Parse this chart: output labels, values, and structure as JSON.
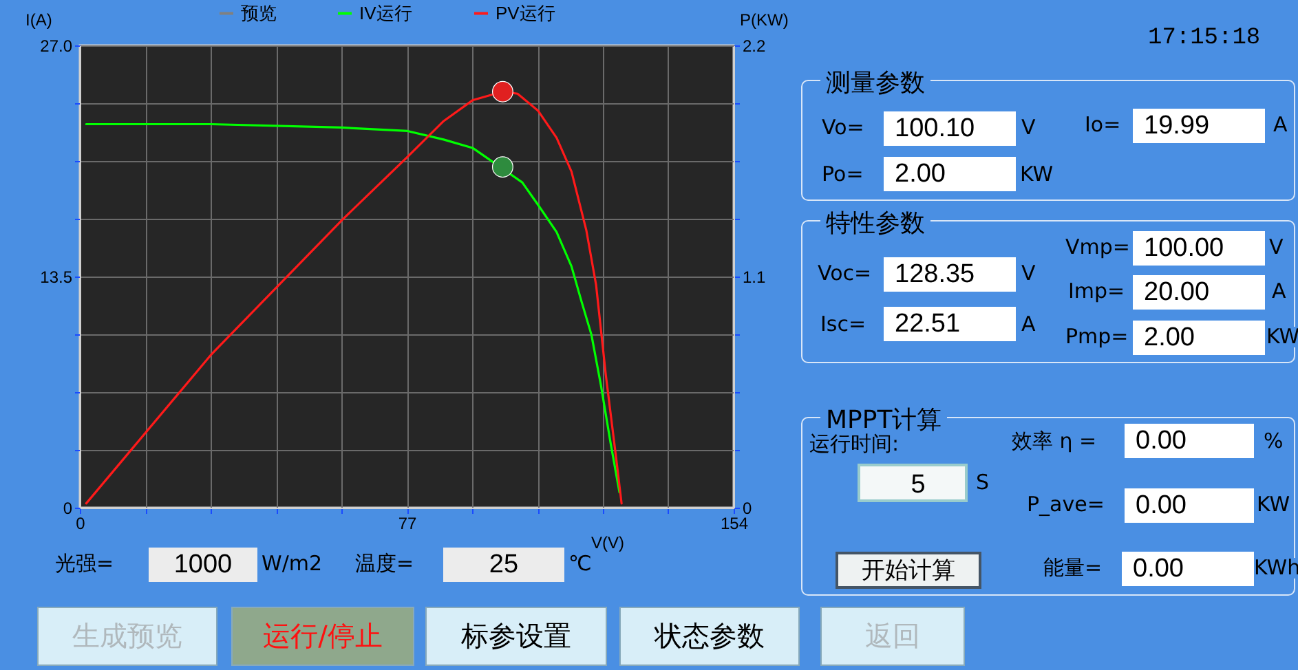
{
  "chart_data": [
    {
      "type": "line",
      "xlabel": "V(V)",
      "ylabel": "I(A)",
      "y2label": "P(KW)",
      "xlim": [
        0,
        154
      ],
      "xticks": [
        0,
        {
          "value": 15.4,
          "label": null
        },
        {
          "value": 30.8,
          "label": null
        },
        {
          "value": 46.2,
          "label": null
        },
        {
          "value": 61.6,
          "label": null
        },
        77,
        {
          "value": 92.4,
          "label": null
        },
        {
          "value": 107.8,
          "label": null
        },
        {
          "value": 123.2,
          "label": null
        },
        {
          "value": 138.6,
          "label": null
        },
        154
      ],
      "ylim": [
        0,
        27
      ],
      "yticks": [
        0,
        {
          "value": 3.375,
          "label": null
        },
        {
          "value": 6.75,
          "label": null
        },
        {
          "value": 10.125,
          "label": null
        },
        13.5,
        {
          "value": 16.875,
          "label": null
        },
        {
          "value": 20.25,
          "label": null
        },
        {
          "value": 23.625,
          "label": null
        },
        {
          "value": 27,
          "label": "27.0"
        }
      ],
      "y2lim": [
        0,
        2.2
      ],
      "y2ticks": [
        0,
        {
          "value": 0.275,
          "label": null
        },
        {
          "value": 0.55,
          "label": null
        },
        {
          "value": 0.825,
          "label": null
        },
        1.1,
        {
          "value": 1.375,
          "label": null
        },
        {
          "value": 1.65,
          "label": null
        },
        {
          "value": 1.925,
          "label": null
        },
        2.2
      ],
      "grid": true,
      "legend": "top",
      "series": [
        {
          "name": "预览",
          "color": "#808080"
        },
        {
          "name": "IV运行",
          "color": "#00ff00",
          "x": [
            1.5,
            30.8,
            61.8,
            77.2,
            85.7,
            92.6,
            104.2,
            107.9,
            112.3,
            115.8,
            118.1,
            120.5,
            122.7,
            125.0,
            127.1
          ],
          "values": [
            22.4,
            22.4,
            22.2,
            22.0,
            21.5,
            21.0,
            19.0,
            17.7,
            16.1,
            14.1,
            12.1,
            10.1,
            7.2,
            3.8,
            0.9
          ]
        },
        {
          "name": "PV运行",
          "color": "#ff1a1a",
          "axis": "y2",
          "x": [
            1.5,
            31.0,
            61.8,
            77.2,
            85.7,
            92.6,
            99.6,
            103.1,
            107.9,
            112.3,
            115.8,
            119.3,
            121.6,
            123.9,
            126.3,
            127.6
          ],
          "values": [
            0.02,
            0.73,
            1.37,
            1.67,
            1.84,
            1.94,
            1.98,
            1.97,
            1.89,
            1.76,
            1.6,
            1.32,
            1.06,
            0.63,
            0.24,
            0.02
          ]
        },
        {
          "type": "scatter",
          "color": "#2e8b3e",
          "x": [
            99.6
          ],
          "values": [
            19.9
          ]
        },
        {
          "type": "scatter",
          "color": "#e02020",
          "axis": "y2",
          "x": [
            99.6
          ],
          "values": [
            1.98
          ]
        }
      ]
    },
    {
      "type": "other",
      "annotations": [
        "17:15:18",
        "测量参数",
        "Vo=",
        "100.10",
        "V",
        "Io=",
        "19.99",
        "A",
        "Po=",
        "2.00",
        "KW",
        "特性参数",
        "Voc=",
        "128.35",
        "V",
        "Isc=",
        "22.51",
        "A",
        "Vmp=",
        "100.00",
        "V",
        "Imp=",
        "20.00",
        "A",
        "Pmp=",
        "2.00",
        "KW",
        "MPPT计算",
        "运行时间:",
        "5",
        "S",
        "效率 η =",
        "0.00",
        "%",
        "P_ave=",
        "0.00",
        "KW",
        "开始计算",
        "能量=",
        "0.00",
        "KWh",
        "光强=",
        "1000",
        "W/m2",
        "温度=",
        "25",
        "℃",
        "生成预览",
        "运行/停止",
        "标参设置",
        "状态参数",
        "返回"
      ]
    }
  ]
}
